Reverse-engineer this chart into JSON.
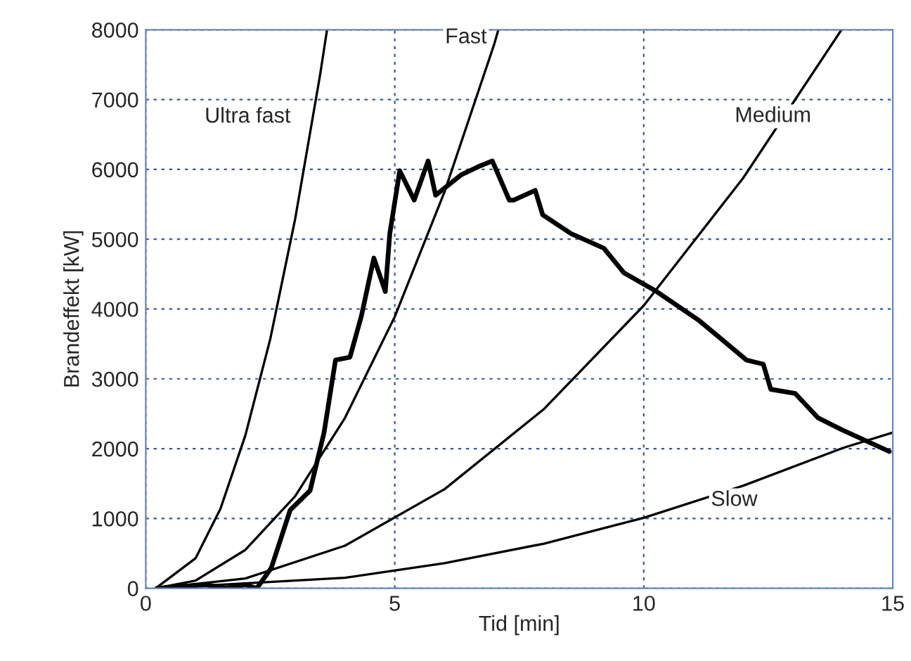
{
  "chart_data": {
    "type": "line",
    "xlabel": "Tid [min]",
    "ylabel": "Brandeffekt [kW]",
    "xlim": [
      0,
      15
    ],
    "xticks": [
      0,
      5,
      10,
      15
    ],
    "ylim": [
      0,
      8000
    ],
    "yticks": [
      0,
      1000,
      2000,
      3000,
      4000,
      5000,
      6000,
      7000,
      8000
    ],
    "grid": true,
    "legend": false,
    "line_style": "solid",
    "marker": "none",
    "series": [
      {
        "color": "#000000",
        "x": [
          0.2,
          1,
          1.5,
          2,
          2.5,
          3,
          3.5,
          3.64
        ],
        "values": [
          0,
          430,
          1140,
          2190,
          3570,
          5290,
          7350,
          8000
        ]
      },
      {
        "color": "#000000",
        "x": [
          0.2,
          1,
          2,
          3,
          4,
          5,
          6,
          7,
          7.08
        ],
        "values": [
          0,
          110,
          550,
          1320,
          2440,
          3890,
          5680,
          7800,
          8000
        ]
      },
      {
        "color": "#000000",
        "x": [
          0.2,
          2,
          4,
          6,
          8,
          10,
          12,
          13.97
        ],
        "values": [
          0,
          140,
          610,
          1420,
          2570,
          4050,
          5880,
          8000
        ]
      },
      {
        "color": "#000000",
        "x": [
          0.2,
          4,
          6,
          8,
          10,
          12,
          14,
          15
        ],
        "values": [
          0,
          150,
          360,
          640,
          1010,
          1470,
          2010,
          2230
        ]
      },
      {
        "color": "#000000",
        "x": [
          0.23,
          1.2,
          1.6,
          2.0,
          2.23,
          2.52,
          2.9,
          3.3,
          3.58,
          3.81,
          4.1,
          4.33,
          4.58,
          4.81,
          4.9,
          5.1,
          5.39,
          5.67,
          5.82,
          6.33,
          6.68,
          6.96,
          7.3,
          7.39,
          7.82,
          7.97,
          8.54,
          9.2,
          9.6,
          10.26,
          11.12,
          12.06,
          12.4,
          12.55,
          13.04,
          13.5,
          13.98,
          14.56,
          14.93
        ],
        "values": [
          0,
          50,
          0,
          50,
          0,
          290,
          1120,
          1400,
          2230,
          3270,
          3310,
          3900,
          4730,
          4250,
          5080,
          5980,
          5560,
          6120,
          5630,
          5920,
          6040,
          6120,
          5560,
          5560,
          5700,
          5350,
          5080,
          4870,
          4520,
          4250,
          3830,
          3270,
          3210,
          2850,
          2790,
          2440,
          2270,
          2080,
          1960
        ]
      }
    ],
    "annotations": [
      {
        "text": "Ultra fast",
        "x": 3.3,
        "y": 6750
      },
      {
        "text": "Fast",
        "x": 6.9,
        "y": 7550
      },
      {
        "text": "Medium",
        "x": 13.3,
        "y": 7150
      },
      {
        "text": "Slow",
        "x": 12.6,
        "y": 1540
      }
    ]
  }
}
